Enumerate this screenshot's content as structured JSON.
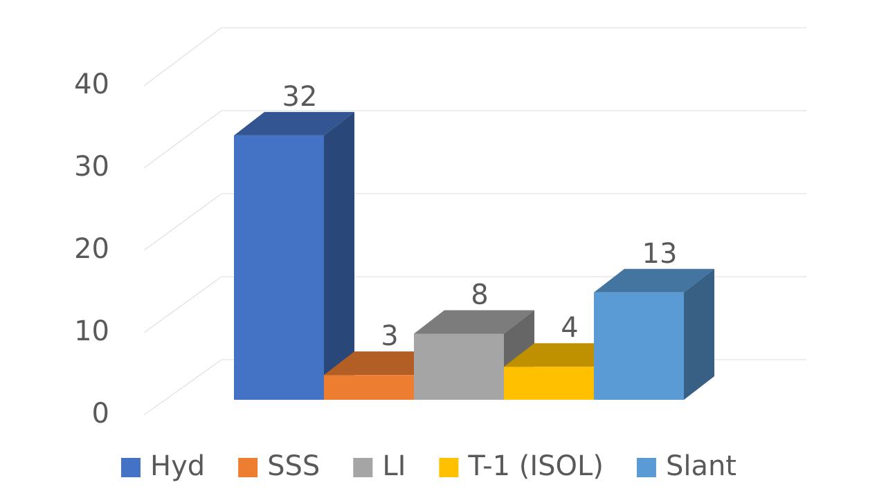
{
  "chart_data": {
    "type": "bar3d",
    "categories": [
      "Hyd",
      "SSS",
      "LI",
      "T-1 (ISOL)",
      "Slant"
    ],
    "values": [
      32,
      3,
      8,
      4,
      13
    ],
    "colors": [
      "#4472c4",
      "#ed7d31",
      "#a5a5a5",
      "#ffc000",
      "#5b9bd5"
    ],
    "ylim": [
      0,
      40
    ],
    "yticks": [
      0,
      10,
      20,
      30,
      40
    ],
    "grid": true,
    "legend": "bottom"
  }
}
